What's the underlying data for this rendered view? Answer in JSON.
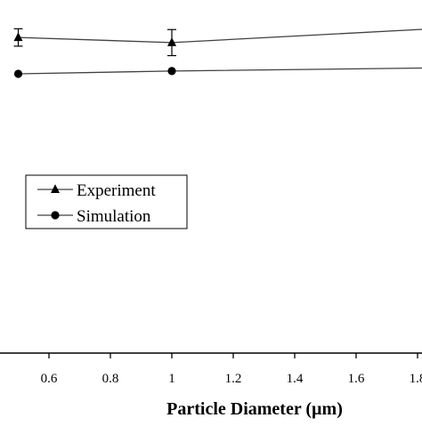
{
  "chart_data": {
    "type": "line",
    "title": "",
    "xlabel": "Particle Diameter (µm)",
    "ylabel": "",
    "xlim": [
      0.45,
      1.85
    ],
    "ylim": [
      0,
      100
    ],
    "x_ticks": [
      "0.6",
      "0.8",
      "1",
      "1.2",
      "1.4",
      "1.6",
      "1.8"
    ],
    "x_tick_values": [
      0.6,
      0.8,
      1.0,
      1.2,
      1.4,
      1.6,
      1.8
    ],
    "grid": false,
    "legend_position": "center-left",
    "series": [
      {
        "name": "Experiment",
        "marker": "triangle",
        "x": [
          0.5,
          1.0,
          1.85
        ],
        "y": [
          90.2,
          88.9,
          92.4
        ],
        "error": [
          2.2,
          3.3,
          0
        ]
      },
      {
        "name": "Simulation",
        "marker": "circle",
        "x": [
          0.5,
          1.0,
          1.85
        ],
        "y": [
          81.0,
          81.7,
          82.5
        ]
      }
    ],
    "colors": {
      "line": "#404040",
      "marker": "#000000",
      "axis": "#000000"
    }
  }
}
